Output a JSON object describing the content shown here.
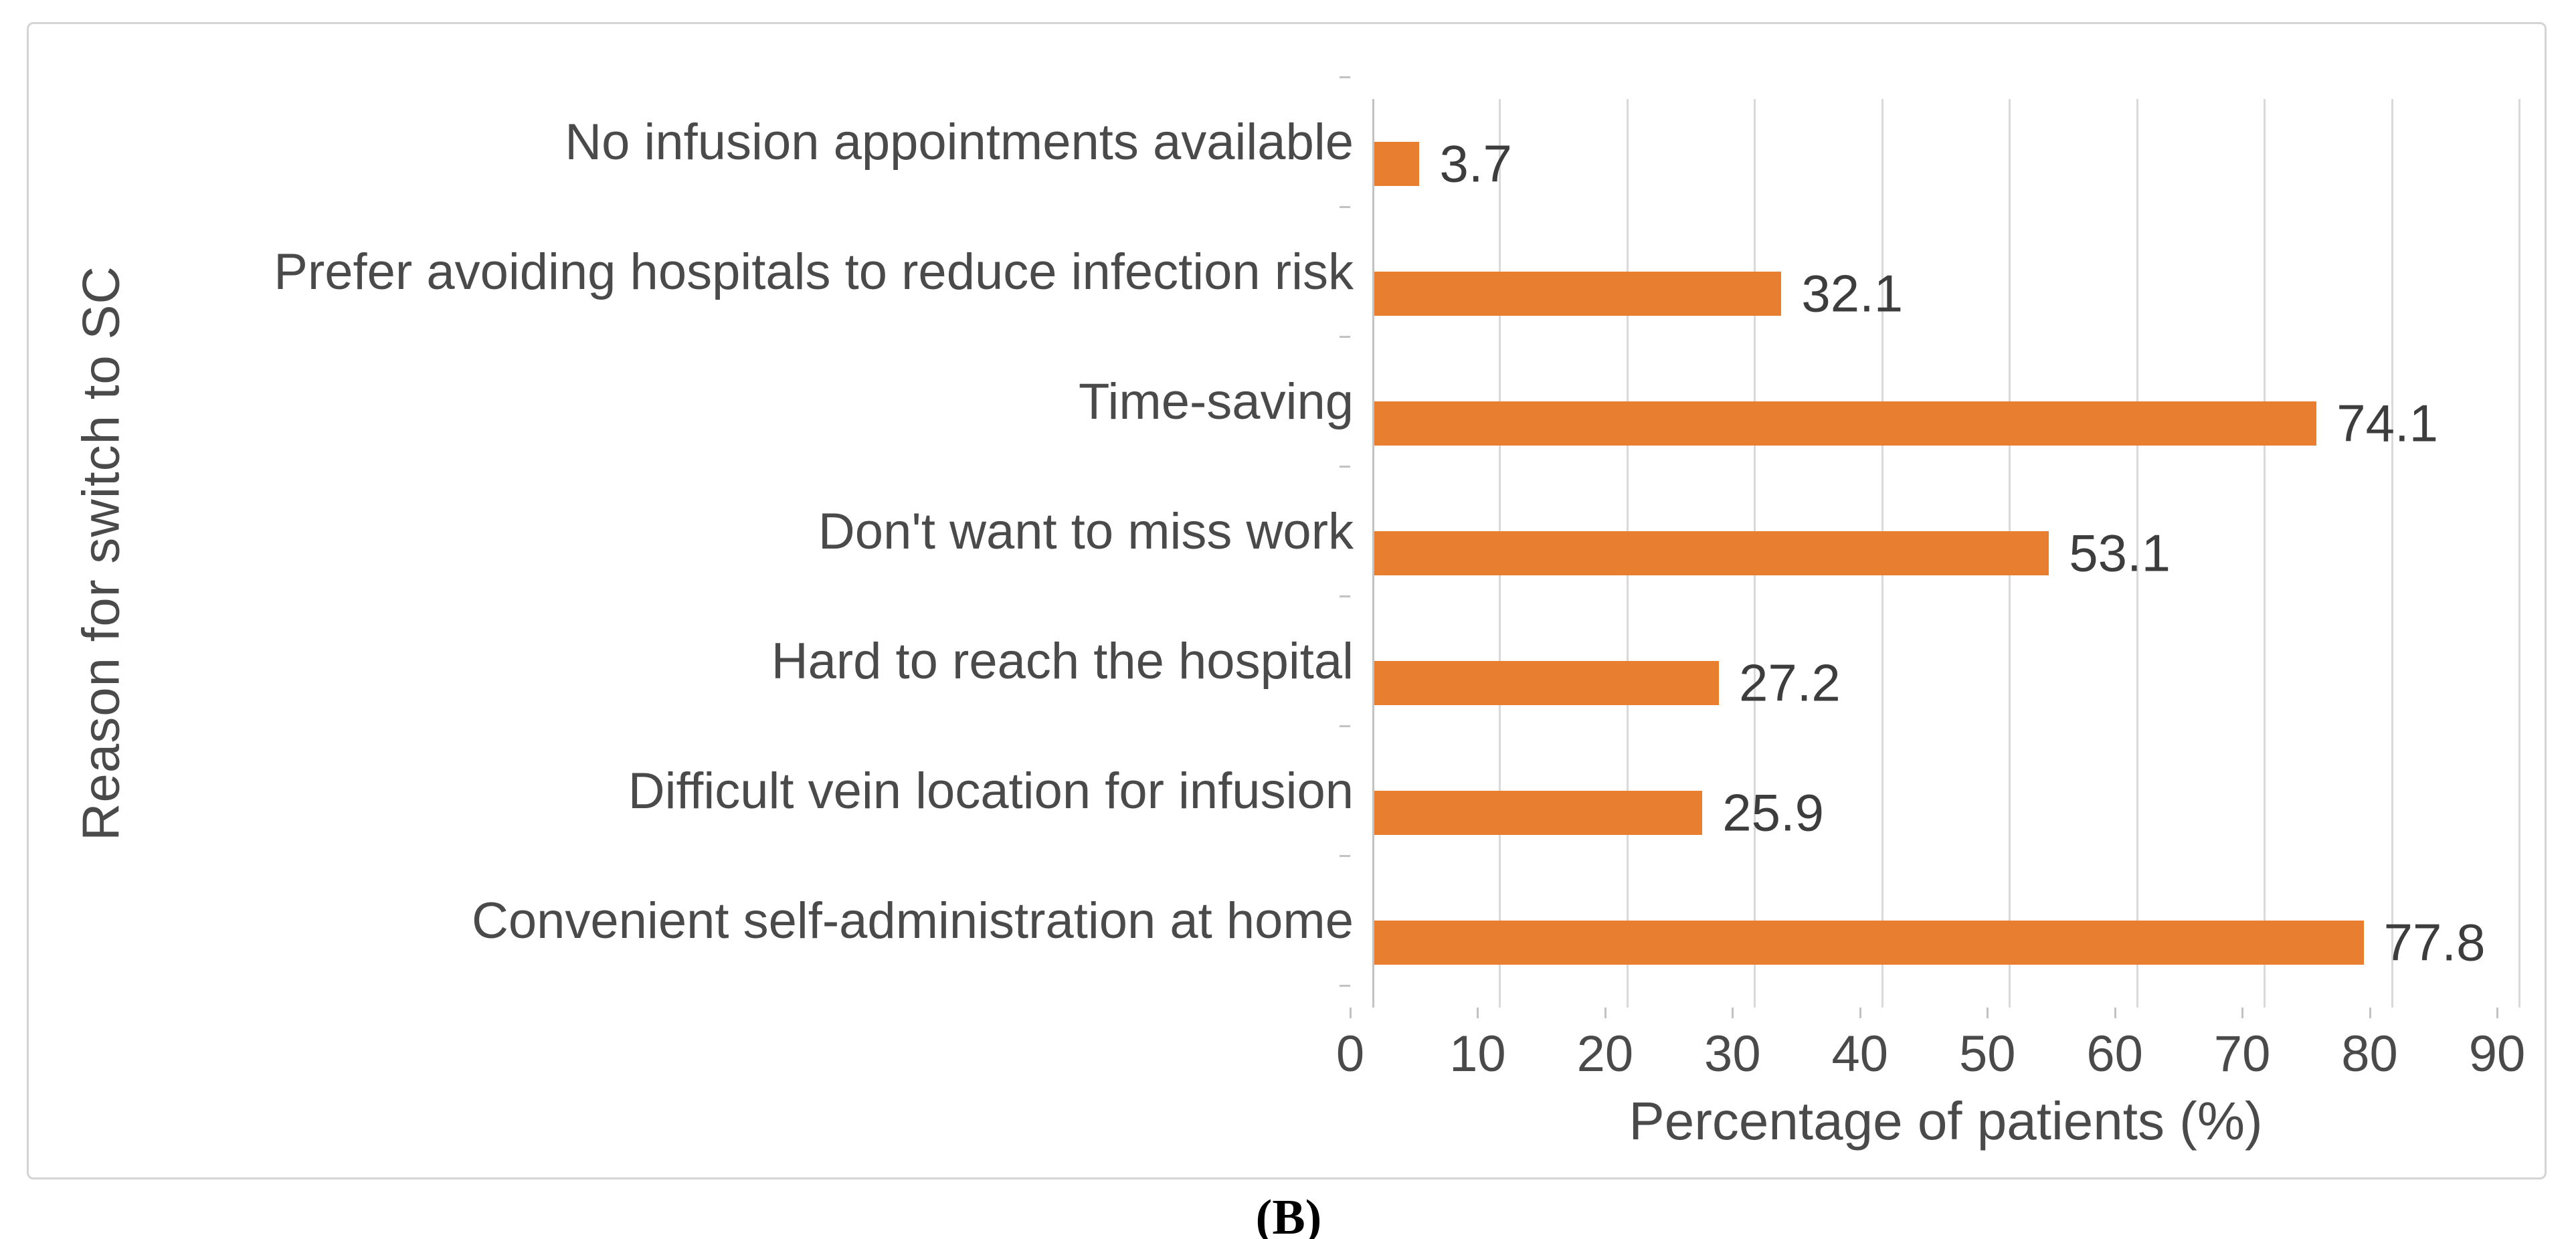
{
  "figure": {
    "caption": "(B)",
    "colors": {
      "bar": "#e87e2f",
      "gridline": "#d9d9d9",
      "axis_line": "#c2c2c2",
      "label_text": "#4a4a4a",
      "value_text": "#3d3d3d",
      "panel_border": "#d4d4d4"
    }
  },
  "chart_data": {
    "type": "bar",
    "orientation": "horizontal",
    "title": "",
    "categories": [
      "No infusion appointments available",
      "Prefer avoiding hospitals to reduce infection risk",
      "Time-saving",
      "Don't want to miss work",
      "Hard to reach the hospital",
      "Difficult vein location for infusion",
      "Convenient self-administration at home"
    ],
    "values": [
      3.7,
      32.1,
      74.1,
      53.1,
      27.2,
      25.9,
      77.8
    ],
    "data_labels": [
      "3.7",
      "32.1",
      "74.1",
      "53.1",
      "27.2",
      "25.9",
      "77.8"
    ],
    "xlabel": "Percentage of patients (%)",
    "ylabel": "Reason for switch to SC",
    "xlim": [
      0,
      90
    ],
    "xticks": [
      0,
      10,
      20,
      30,
      40,
      50,
      60,
      70,
      80,
      90
    ],
    "grid": "vertical gridlines on",
    "legend": "none",
    "data_labels_position": "outside-end"
  }
}
